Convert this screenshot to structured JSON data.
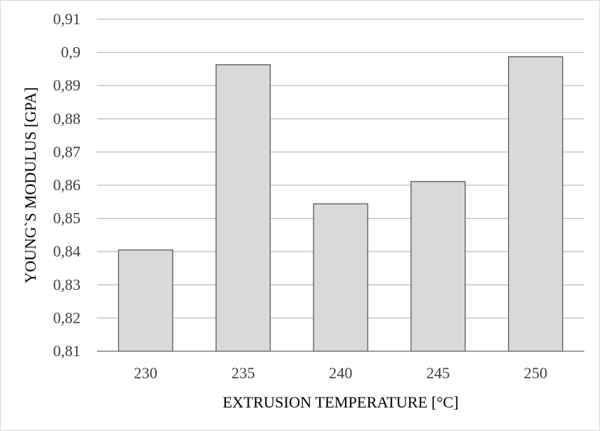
{
  "chart_data": {
    "type": "bar",
    "title": "",
    "xlabel": "EXTRUSION TEMPERATURE [°C]",
    "ylabel": "YOUNG`S MODULUS [GPA]",
    "categories": [
      "230",
      "235",
      "240",
      "245",
      "250"
    ],
    "values": [
      0.8405,
      0.8963,
      0.8544,
      0.8611,
      0.8987
    ],
    "ylim": [
      0.81,
      0.91
    ],
    "yticks": [
      "0,81",
      "0,82",
      "0,83",
      "0,84",
      "0,85",
      "0,86",
      "0,87",
      "0,88",
      "0,89",
      "0,9",
      "0,91"
    ],
    "grid": true,
    "legend": "none",
    "colors": {
      "bar_fill": "#d9d9d9",
      "bar_stroke": "#595959",
      "grid": "#bfbfbf",
      "axis": "#808080"
    }
  }
}
